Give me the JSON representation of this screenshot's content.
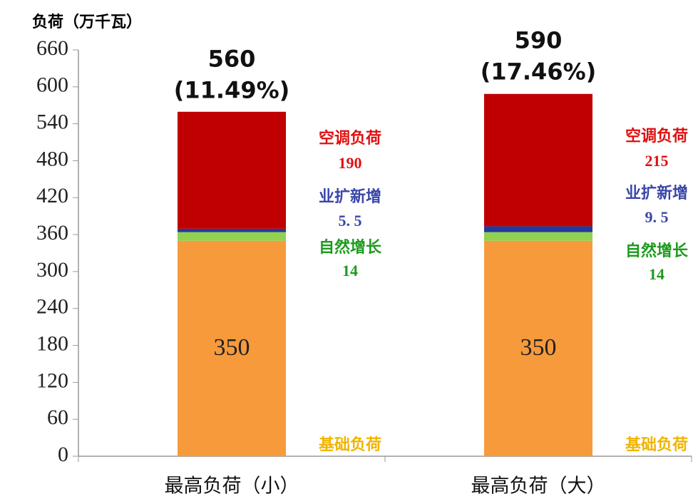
{
  "chart_data": {
    "type": "stacked_bar",
    "y_label": "负荷（万千瓦）",
    "categories": [
      "最高负荷（小）",
      "最高负荷（大）"
    ],
    "series": [
      {
        "name": "基础负荷",
        "color": "#f79a3c",
        "label_color": "#f0b400",
        "values": [
          350,
          350
        ]
      },
      {
        "name": "自然增长",
        "color": "#92d050",
        "label_color": "#1e9a1e",
        "values": [
          14,
          14
        ]
      },
      {
        "name": "业扩新增",
        "color": "#1f3c9c",
        "label_color": "#3a46a8",
        "values": [
          5.5,
          9.5
        ],
        "value_labels": [
          "5. 5",
          "9. 5"
        ]
      },
      {
        "name": "空调负荷",
        "color": "#c00000",
        "label_color": "#e01010",
        "values": [
          190,
          215
        ]
      }
    ],
    "totals": [
      560,
      590
    ],
    "total_growth_labels": [
      "(11.49%)",
      "(17.46%)"
    ],
    "ylim": [
      0,
      660
    ],
    "yticks": [
      0,
      60,
      120,
      180,
      240,
      300,
      360,
      420,
      480,
      540,
      600,
      660
    ]
  }
}
